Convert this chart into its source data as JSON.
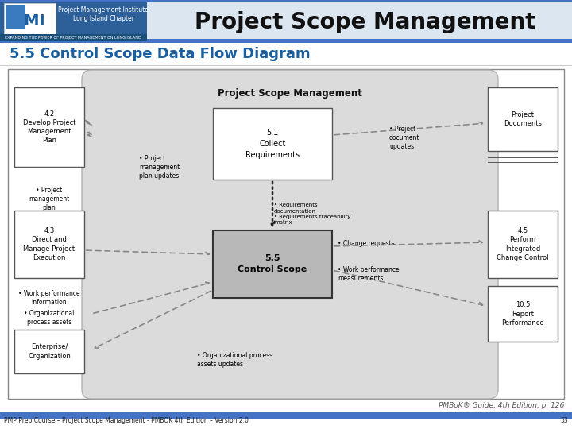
{
  "header_title": "Project Scope Management",
  "slide_title": "5.5 Control Scope Data Flow Diagram",
  "slide_title_color": "#1a5fa0",
  "bg_color": "#ffffff",
  "footer_text": "PMP Prep Course – Project Scope Management - PMBOK 4th Edition – Version 2.0",
  "footer_page": "53",
  "footer_ref": "PMBoK® Guide, 4th Edition, p. 126",
  "diagram_title": "Project Scope Management",
  "process_center_label": "5.5\nControl Scope",
  "process_51_label": "5.1\nCollect\nRequirements",
  "box_42_label": "4.2\nDevelop Project\nManagement\nPlan",
  "box_43_label": "4.3\nDirect and\nManage Project\nExecution",
  "box_eo_label": "Enterprise/\nOrganization",
  "box_proj_docs_label": "Project\nDocuments",
  "box_45_label": "4.5\nPerform\nIntegrated\nChange Control",
  "box_105_label": "10.5\nReport\nPerformance",
  "label_proj_mgmt_plan_updates": "• Project\nmanagement\nplan updates",
  "label_proj_mgmt_plan": "• Project\nmanagement\nplan",
  "label_req_doc": "• Requirements\ndocumentation\n• Requirements traceability\nmatrix",
  "label_proj_doc_updates": "• Project\ndocument\nupdates",
  "label_work_perf_info": "• Work performance\ninformation",
  "label_org_proc_assets": "• Organizational\nprocess assets",
  "label_change_req": "• Change requests",
  "label_work_perf_meas": "• Work performance\nmeasurements",
  "label_org_proc_updates": "• Organizational process\nassets updates"
}
